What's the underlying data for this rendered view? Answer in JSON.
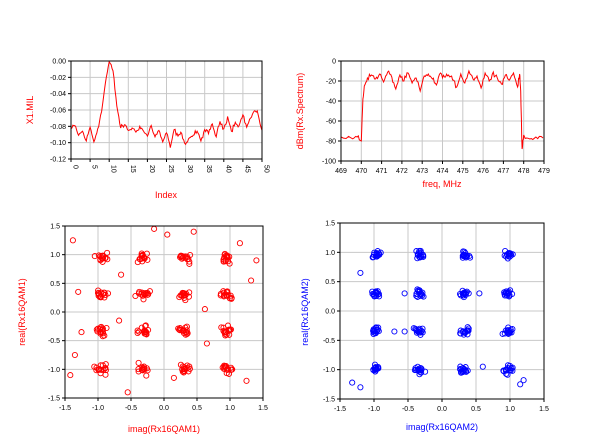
{
  "colors": {
    "red": "#ff0000",
    "blue": "#0000ff",
    "grid": "#c8c8c8",
    "frame": "#000000"
  },
  "chart_data": [
    {
      "type": "line",
      "xlabel": "Index",
      "ylabel": "X1.MIL",
      "x_ticks": [
        "0",
        "5",
        "10",
        "15",
        "20",
        "25",
        "30",
        "35",
        "40",
        "45",
        "50"
      ],
      "y_ticks": [
        "0.00",
        "-0.02",
        "-0.04",
        "-0.06",
        "-0.08",
        "-0.10",
        "-0.12"
      ],
      "xlim": [
        0,
        50
      ],
      "ylim": [
        -0.12,
        0.0
      ],
      "grid": true,
      "color": "#ff0000",
      "series": [
        {
          "x": [
            0,
            1,
            2,
            3,
            4,
            5,
            6,
            7,
            8,
            9,
            10,
            11,
            12,
            13,
            14,
            15,
            16,
            17,
            18,
            19,
            20,
            21,
            22,
            23,
            24,
            25,
            26,
            27,
            28,
            29,
            30,
            31,
            32,
            33,
            34,
            35,
            36,
            37,
            38,
            39,
            40,
            41,
            42,
            43,
            44,
            45,
            46,
            47,
            48,
            49,
            50
          ],
          "values": [
            -0.083,
            -0.079,
            -0.091,
            -0.086,
            -0.098,
            -0.081,
            -0.099,
            -0.083,
            -0.062,
            -0.027,
            -0.001,
            -0.012,
            -0.055,
            -0.082,
            -0.078,
            -0.085,
            -0.082,
            -0.087,
            -0.08,
            -0.086,
            -0.092,
            -0.079,
            -0.093,
            -0.085,
            -0.099,
            -0.088,
            -0.106,
            -0.084,
            -0.092,
            -0.089,
            -0.102,
            -0.094,
            -0.091,
            -0.086,
            -0.098,
            -0.084,
            -0.089,
            -0.077,
            -0.093,
            -0.074,
            -0.083,
            -0.068,
            -0.086,
            -0.075,
            -0.079,
            -0.066,
            -0.081,
            -0.07,
            -0.061,
            -0.066,
            -0.085
          ]
        }
      ]
    },
    {
      "type": "line",
      "xlabel": "freq, MHz",
      "ylabel": "dBm(Rx.Spectrum)",
      "x_ticks": [
        "469",
        "470",
        "471",
        "472",
        "473",
        "474",
        "475",
        "476",
        "477",
        "478",
        "479"
      ],
      "y_ticks": [
        "0",
        "-20",
        "-40",
        "-60",
        "-80",
        "-100"
      ],
      "xlim": [
        469,
        479
      ],
      "ylim": [
        -100,
        0
      ],
      "grid": true,
      "color": "#ff0000",
      "series": [
        {
          "x": [
            469.0,
            469.5,
            469.8,
            470.0,
            470.08,
            470.15,
            470.3,
            470.5,
            470.7,
            470.9,
            471.1,
            471.3,
            471.5,
            471.7,
            471.9,
            472.1,
            472.3,
            472.5,
            472.7,
            472.9,
            473.1,
            473.3,
            473.5,
            473.7,
            473.9,
            474.1,
            474.3,
            474.5,
            474.7,
            474.9,
            475.1,
            475.3,
            475.5,
            475.7,
            475.9,
            476.1,
            476.3,
            476.5,
            476.7,
            476.9,
            477.1,
            477.3,
            477.5,
            477.7,
            477.8,
            477.85,
            477.92,
            478.0,
            478.3,
            478.6,
            478.95
          ],
          "values": [
            -76,
            -77,
            -76,
            -80,
            -38,
            -25,
            -17,
            -14,
            -18,
            -13,
            -21,
            -11,
            -16,
            -28,
            -14,
            -20,
            -12,
            -22,
            -17,
            -30,
            -15,
            -13,
            -18,
            -24,
            -12,
            -16,
            -14,
            -19,
            -26,
            -13,
            -22,
            -10,
            -18,
            -15,
            -27,
            -12,
            -20,
            -11,
            -17,
            -23,
            -14,
            -19,
            -12,
            -26,
            -13,
            -30,
            -88,
            -74,
            -78,
            -76,
            -77
          ]
        }
      ]
    },
    {
      "type": "scatter",
      "xlabel": "imag(Rx16QAM1)",
      "ylabel": "real(Rx16QAM1)",
      "x_ticks": [
        "-1.5",
        "-1.0",
        "-0.5",
        "0.0",
        "0.5",
        "1.0",
        "1.5"
      ],
      "y_ticks": [
        "1.5",
        "1.0",
        "0.5",
        "0.0",
        "-0.5",
        "-1.0",
        "-1.5"
      ],
      "xlim": [
        -1.5,
        1.5
      ],
      "ylim": [
        -1.5,
        1.5
      ],
      "grid": true,
      "marker": "circle",
      "color": "#ff0000",
      "clusters": {
        "x_levels": [
          -0.95,
          -0.32,
          0.32,
          0.95
        ],
        "y_levels": [
          0.95,
          0.3,
          -0.33,
          -1.0
        ],
        "spread": 0.13,
        "outliers": [
          [
            -1.38,
            1.25
          ],
          [
            -1.3,
            0.35
          ],
          [
            -1.25,
            -0.35
          ],
          [
            -1.35,
            -0.75
          ],
          [
            -0.65,
            0.65
          ],
          [
            -0.15,
            1.45
          ],
          [
            0.05,
            1.35
          ],
          [
            0.65,
            -0.55
          ],
          [
            1.32,
            0.55
          ],
          [
            1.25,
            -1.2
          ],
          [
            -0.55,
            -1.4
          ],
          [
            0.15,
            -1.15
          ],
          [
            1.4,
            0.9
          ],
          [
            -1.42,
            -1.1
          ],
          [
            0.62,
            0.05
          ],
          [
            -0.68,
            -0.15
          ],
          [
            0.45,
            1.4
          ],
          [
            1.15,
            1.2
          ]
        ]
      }
    },
    {
      "type": "scatter",
      "xlabel": "imag(Rx16QAM2)",
      "ylabel": "real(Rx16QAM2)",
      "x_ticks": [
        "-1.5",
        "-1.0",
        "-0.5",
        "0.0",
        "0.5",
        "1.0",
        "1.5"
      ],
      "y_ticks": [
        "1.5",
        "1.0",
        "0.5",
        "0.0",
        "-0.5",
        "-1.0",
        "-1.5"
      ],
      "xlim": [
        -1.5,
        1.5
      ],
      "ylim": [
        -1.5,
        1.5
      ],
      "grid": true,
      "marker": "circle",
      "color": "#0000ff",
      "clusters": {
        "x_levels": [
          -0.97,
          -0.33,
          0.33,
          0.97
        ],
        "y_levels": [
          0.95,
          0.3,
          -0.35,
          -1.0
        ],
        "spread": 0.1,
        "outliers": [
          [
            -1.2,
            0.65
          ],
          [
            -1.32,
            -1.22
          ],
          [
            -1.2,
            -1.3
          ],
          [
            -0.55,
            0.3
          ],
          [
            0.55,
            0.3
          ],
          [
            -0.55,
            -0.35
          ],
          [
            1.15,
            -1.25
          ],
          [
            1.2,
            -1.18
          ],
          [
            -0.7,
            -0.35
          ],
          [
            0.6,
            -0.95
          ]
        ]
      }
    }
  ]
}
